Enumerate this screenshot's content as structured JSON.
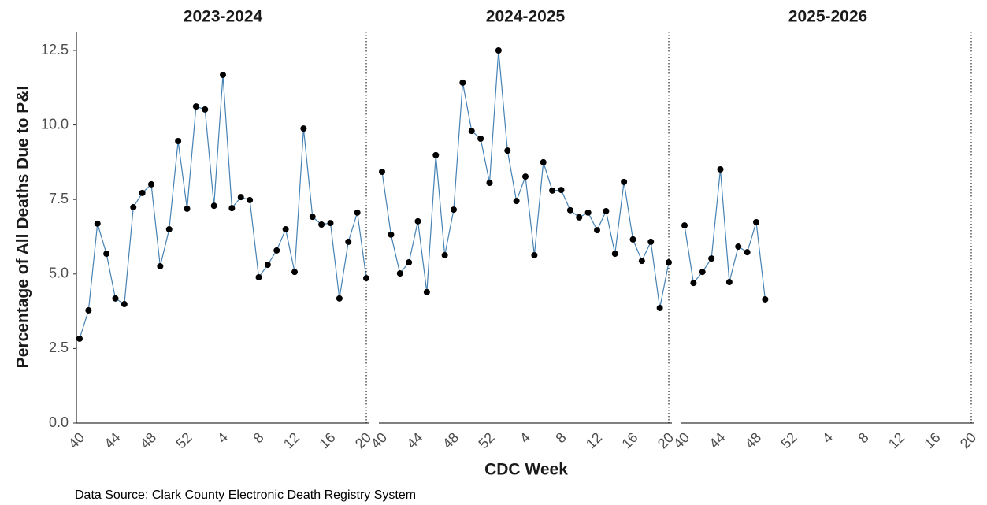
{
  "chart_data": [
    {
      "type": "line",
      "title": "2023-2024",
      "categories": [
        "40",
        null,
        null,
        null,
        "44",
        null,
        null,
        null,
        "48",
        null,
        null,
        null,
        "52",
        null,
        null,
        null,
        "4",
        null,
        null,
        null,
        "8",
        null,
        null,
        null,
        "12",
        null,
        null,
        null,
        "16",
        null,
        null,
        null,
        "20"
      ],
      "values": [
        2.83,
        3.78,
        6.69,
        5.68,
        4.18,
        3.99,
        7.24,
        7.72,
        8.01,
        5.26,
        6.5,
        9.46,
        7.19,
        10.62,
        10.52,
        7.29,
        11.68,
        7.21,
        7.58,
        7.48,
        4.89,
        5.31,
        5.79,
        6.5,
        5.07,
        9.88,
        6.92,
        6.66,
        6.71,
        4.18,
        6.08,
        7.06,
        4.86
      ],
      "color": "#4682b4",
      "marker_color": "#000000",
      "ylim": [
        0,
        12.5
      ],
      "yticks": [
        {
          "value": 0,
          "label": "0.0"
        },
        2.5,
        {
          "value": 5,
          "label": "5.0"
        },
        7.5,
        {
          "value": 10,
          "label": "10.0"
        },
        12.5
      ]
    },
    {
      "type": "line",
      "title": "2024-2025",
      "categories": [
        "40",
        null,
        null,
        null,
        "44",
        null,
        null,
        null,
        "48",
        null,
        null,
        null,
        "52",
        null,
        null,
        null,
        "4",
        null,
        null,
        null,
        "8",
        null,
        null,
        null,
        "12",
        null,
        null,
        null,
        "16",
        null,
        null,
        null,
        "20"
      ],
      "values": [
        8.43,
        6.32,
        5.02,
        5.39,
        6.77,
        4.39,
        8.99,
        5.63,
        7.16,
        11.42,
        9.8,
        9.54,
        8.06,
        12.5,
        9.14,
        7.45,
        8.27,
        5.63,
        8.75,
        7.8,
        7.82,
        7.14,
        6.9,
        7.06,
        6.47,
        7.11,
        5.68,
        8.09,
        6.16,
        5.44,
        6.08,
        3.86,
        5.39
      ],
      "color": "#4682b4",
      "marker_color": "#000000",
      "ylim": [
        0,
        12.5
      ]
    },
    {
      "type": "line",
      "title": "2025-2026",
      "categories": [
        "40",
        null,
        null,
        null,
        "44",
        null,
        null,
        null,
        "48",
        null,
        null,
        null,
        "52",
        null,
        null,
        null,
        "4",
        null,
        null,
        null,
        "8",
        null,
        null,
        null,
        "12",
        null,
        null,
        null,
        "16",
        null,
        null,
        null,
        "20"
      ],
      "values": [
        6.63,
        4.7,
        5.07,
        5.52,
        8.51,
        4.73,
        5.92,
        5.73,
        6.74,
        4.15,
        null,
        null,
        null,
        null,
        null,
        null,
        null,
        null,
        null,
        null,
        null,
        null,
        null,
        null,
        null,
        null,
        null,
        null,
        null,
        null,
        null,
        null,
        null
      ],
      "color": "#4682b4",
      "marker_color": "#000000",
      "ylim": [
        0,
        12.5
      ]
    }
  ],
  "ylabel": "Percentage of All Deaths Due to P&I",
  "xlabel": "CDC Week",
  "source": "Data Source: Clark County Electronic Death Registry System"
}
